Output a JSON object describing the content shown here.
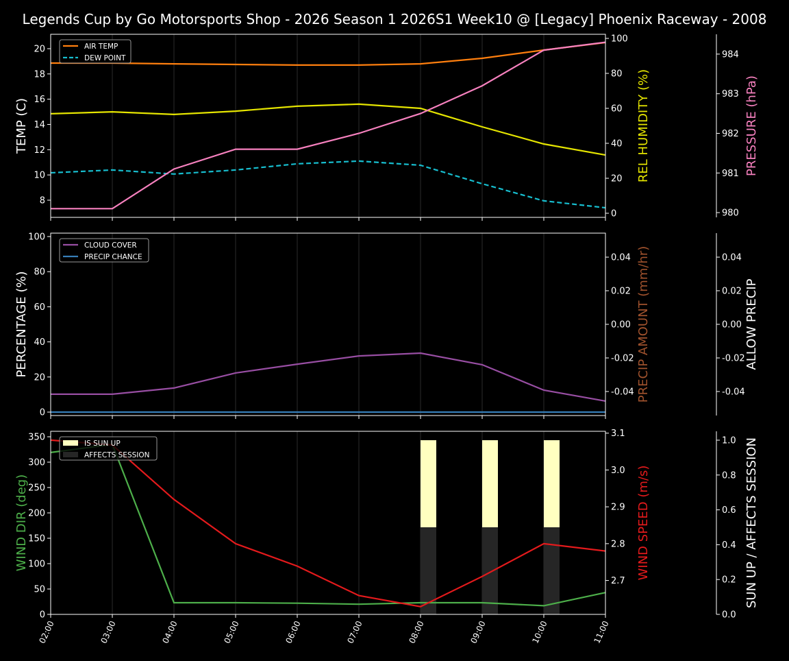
{
  "title": "Legends Cup by Go Motorsports Shop - 2026 Season 1 2026S1 Week10 @ [Legacy] Phoenix Raceway - 2008",
  "chart_data": [
    {
      "type": "line",
      "x": [
        "02:00",
        "03:00",
        "04:00",
        "05:00",
        "06:00",
        "07:00",
        "08:00",
        "09:00",
        "10:00",
        "11:00"
      ],
      "axes": {
        "left": {
          "label": "TEMP (C)",
          "ylim": [
            6.64,
            21.14
          ],
          "ticks": [
            8,
            10,
            12,
            14,
            16,
            18,
            20
          ],
          "color": "#ffffff"
        },
        "right": {
          "label": "REL HUMIDITY (%)",
          "ylim": [
            -2.35,
            102.35
          ],
          "ticks": [
            0,
            20,
            40,
            60,
            80,
            100
          ],
          "color": "#e5e500"
        },
        "right2": {
          "label": "PRESSURE (hPa)",
          "ylim": [
            979.88,
            984.5
          ],
          "ticks": [
            980,
            981,
            982,
            983,
            984
          ],
          "color": "#f781bf"
        }
      },
      "series": [
        {
          "name": "AIR TEMP",
          "axis": "left",
          "color": "#ff7f0e",
          "dash": false,
          "values": [
            18.86,
            18.86,
            18.8,
            18.75,
            18.7,
            18.7,
            18.8,
            19.24,
            19.89,
            20.49
          ]
        },
        {
          "name": "DEW POINT",
          "axis": "left",
          "color": "#17becf",
          "dash": true,
          "values": [
            10.17,
            10.39,
            10.07,
            10.39,
            10.88,
            11.1,
            10.77,
            9.3,
            7.95,
            7.4
          ]
        },
        {
          "axis": "right",
          "color": "#e5e500",
          "dash": false,
          "values": [
            56.9,
            58.0,
            56.5,
            58.4,
            61.2,
            62.4,
            60.0,
            49.4,
            39.6,
            33.3
          ]
        },
        {
          "axis": "right2",
          "color": "#f781bf",
          "dash": false,
          "values": [
            980.1,
            980.1,
            981.1,
            981.6,
            981.6,
            982.0,
            982.5,
            983.2,
            984.1,
            984.3
          ]
        }
      ],
      "legend": "top-left",
      "grid": "vertical"
    },
    {
      "type": "line",
      "x": [
        "02:00",
        "03:00",
        "04:00",
        "05:00",
        "06:00",
        "07:00",
        "08:00",
        "09:00",
        "10:00",
        "11:00"
      ],
      "axes": {
        "left": {
          "label": "PERCENTAGE (%)",
          "ylim": [
            -1.95,
            101.95
          ],
          "ticks": [
            0,
            20,
            40,
            60,
            80,
            100
          ],
          "color": "#ffffff"
        },
        "right": {
          "label": "PRECIP AMOUNT (mm/hr)",
          "ylim": [
            -0.0543,
            0.0543
          ],
          "ticks": [
            "-0.04",
            "-0.02",
            "0.00",
            "0.02",
            "0.04"
          ],
          "color": "#a0522d"
        },
        "right2": {
          "label": "ALLOW PRECIP",
          "ylim": [
            -0.0543,
            0.0543
          ],
          "ticks": [
            "-0.04",
            "-0.02",
            "0.00",
            "0.02",
            "0.04"
          ],
          "color": "#ffffff"
        }
      },
      "series": [
        {
          "name": "CLOUD COVER",
          "axis": "left",
          "color": "#984ea3",
          "dash": false,
          "values": [
            10.2,
            10.2,
            13.7,
            22.3,
            27.3,
            32.0,
            33.6,
            27.0,
            12.5,
            6.3
          ]
        },
        {
          "name": "PRECIP CHANCE",
          "axis": "left",
          "color": "#377eb8",
          "dash": false,
          "values": [
            0,
            0,
            0,
            0,
            0,
            0,
            0,
            0,
            0,
            0
          ]
        }
      ],
      "legend": "top-left",
      "grid": "vertical"
    },
    {
      "type": "line",
      "x": [
        "02:00",
        "03:00",
        "04:00",
        "05:00",
        "06:00",
        "07:00",
        "08:00",
        "09:00",
        "10:00",
        "11:00"
      ],
      "axes": {
        "left": {
          "label": "WIND DIR (deg)",
          "ylim": [
            0,
            360.8
          ],
          "ticks": [
            0,
            50,
            100,
            150,
            200,
            250,
            300,
            350
          ],
          "color": "#4daf4a"
        },
        "right": {
          "label": "WIND SPEED (m/s)",
          "ylim": [
            2.608,
            3.105
          ],
          "ticks": [
            "2.7",
            "2.8",
            "2.9",
            "3.0",
            "3.1"
          ],
          "color": "#e41a1c"
        },
        "right2": {
          "label": "SUN UP / AFFECTS SESSION",
          "ylim": [
            0,
            1.051
          ],
          "ticks": [
            "0.0",
            "0.2",
            "0.4",
            "0.6",
            "0.8",
            "1.0"
          ],
          "color": "#ffffff"
        }
      },
      "bars": [
        {
          "name": "IS SUN UP",
          "axis": "right2",
          "color": "#ffffc0",
          "values": [
            0,
            0,
            0,
            0,
            0,
            0,
            1,
            1,
            1,
            0
          ]
        },
        {
          "name": "AFFECTS SESSION",
          "axis": "right2",
          "color": "#262626",
          "values": [
            0,
            0,
            0,
            0,
            0,
            0,
            0.5,
            0.5,
            0.5,
            0
          ]
        }
      ],
      "series": [
        {
          "axis": "left",
          "color": "#4daf4a",
          "dash": false,
          "values": [
            319,
            335,
            23,
            23,
            22,
            20,
            23,
            23,
            17,
            43
          ]
        },
        {
          "axis": "right",
          "color": "#e41a1c",
          "dash": false,
          "values": [
            3.081,
            3.068,
            2.92,
            2.8,
            2.739,
            2.659,
            2.629,
            2.711,
            2.8,
            2.78
          ]
        }
      ],
      "legend": "top-left",
      "grid": "vertical"
    }
  ]
}
